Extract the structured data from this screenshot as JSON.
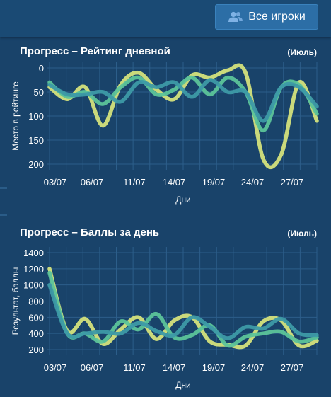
{
  "header": {
    "all_players_label": "Все игроки",
    "all_players_icon": "users-icon"
  },
  "colors": {
    "background": "#19436a",
    "grid": "#2c5e8a",
    "button": "#2c6ea6",
    "series": [
      "#d4e17c",
      "#5cc49a",
      "#3d9aa6"
    ]
  },
  "chart_data": [
    {
      "type": "line",
      "title": "Прогресс – Рейтинг дневной",
      "period": "(Июль)",
      "xlabel": "Дни",
      "ylabel": "Место в рейтинге",
      "y_inverted": true,
      "ylim": [
        0,
        200
      ],
      "yticks": [
        "0",
        "50",
        "100",
        "150",
        "200"
      ],
      "xticks": [
        "03/07",
        "06/07",
        "11/07",
        "14/07",
        "19/07",
        "24/07",
        "27/07"
      ],
      "x": [
        1,
        3,
        5,
        7,
        9,
        11,
        13,
        15,
        17,
        19,
        21,
        23,
        25,
        27,
        29,
        31
      ],
      "grid": true,
      "series": [
        {
          "values": [
            40,
            65,
            40,
            120,
            35,
            10,
            45,
            65,
            15,
            20,
            5,
            10,
            190,
            180,
            30,
            110
          ]
        },
        {
          "values": [
            30,
            60,
            50,
            75,
            40,
            20,
            55,
            45,
            20,
            55,
            20,
            50,
            130,
            40,
            35,
            95
          ]
        },
        {
          "values": [
            35,
            55,
            55,
            50,
            70,
            30,
            40,
            30,
            60,
            25,
            50,
            50,
            110,
            40,
            40,
            80
          ]
        }
      ]
    },
    {
      "type": "line",
      "title": "Прогресс – Баллы за день",
      "period": "(Июль)",
      "xlabel": "Дни",
      "ylabel": "Результат, баллы",
      "ylim": [
        200,
        1400
      ],
      "yticks": [
        "1400",
        "1200",
        "1000",
        "800",
        "600",
        "400",
        "200"
      ],
      "xticks": [
        "03/07",
        "06/07",
        "11/07",
        "14/07",
        "19/07",
        "24/07",
        "27/07"
      ],
      "x": [
        1,
        3,
        5,
        7,
        9,
        11,
        13,
        15,
        17,
        19,
        21,
        23,
        25,
        27,
        29,
        31
      ],
      "grid": true,
      "series": [
        {
          "values": [
            1200,
            430,
            580,
            270,
            450,
            600,
            330,
            560,
            600,
            300,
            260,
            250,
            550,
            560,
            250,
            310
          ]
        },
        {
          "values": [
            1150,
            400,
            400,
            300,
            550,
            450,
            640,
            350,
            380,
            500,
            250,
            360,
            400,
            420,
            300,
            350
          ]
        },
        {
          "values": [
            1000,
            400,
            400,
            420,
            400,
            530,
            430,
            380,
            600,
            480,
            340,
            480,
            460,
            580,
            400,
            380
          ]
        }
      ]
    }
  ]
}
